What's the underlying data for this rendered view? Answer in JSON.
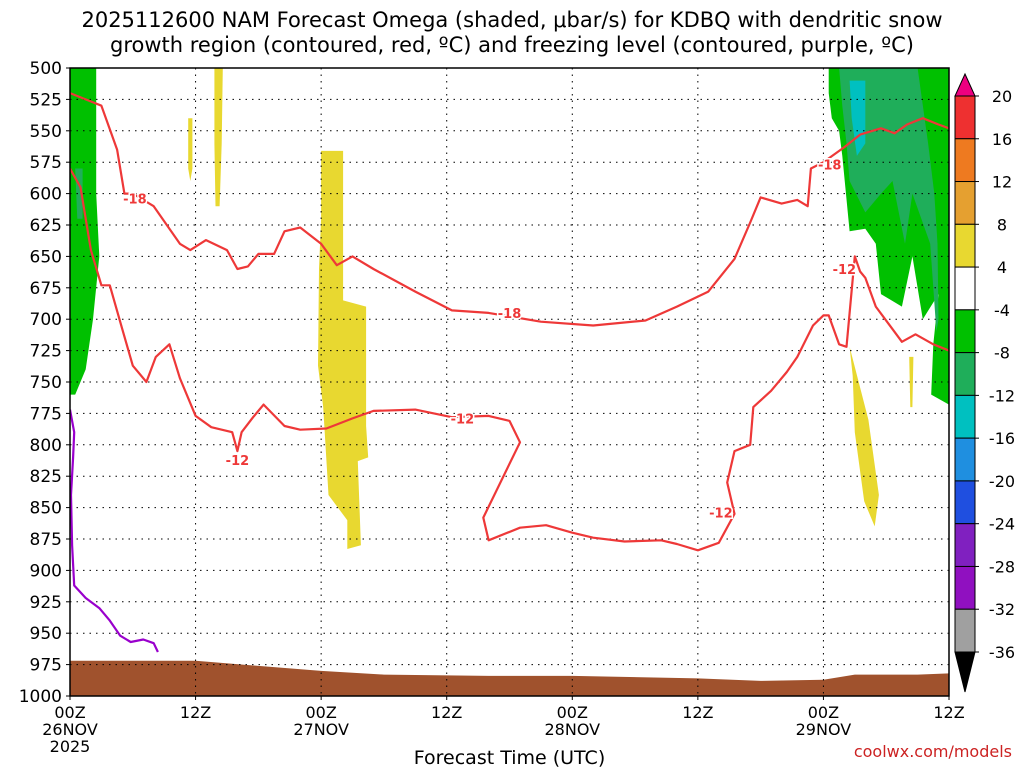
{
  "chart_data": {
    "type": "time-height contour",
    "title_line1": "2025112600 NAM Forecast Omega (shaded, μbar/s) for KDBQ with dendritic snow",
    "title_line2": "growth region (contoured, red, ºC) and freezing level (contoured, purple, ºC)",
    "xlabel": "Forecast Time (UTC)",
    "ylabel": "",
    "x_range_hours": [
      0,
      84
    ],
    "y_range_hpa": [
      1000,
      500
    ],
    "y_ticks": [
      "500",
      "525",
      "550",
      "575",
      "600",
      "625",
      "650",
      "675",
      "700",
      "725",
      "750",
      "775",
      "800",
      "825",
      "850",
      "875",
      "900",
      "925",
      "950",
      "975",
      "1000"
    ],
    "x_ticks": [
      {
        "hour": 0,
        "line1": "00Z",
        "line2": "26NOV",
        "line3": "2025"
      },
      {
        "hour": 12,
        "line1": "12Z",
        "line2": "",
        "line3": ""
      },
      {
        "hour": 24,
        "line1": "00Z",
        "line2": "27NOV",
        "line3": ""
      },
      {
        "hour": 36,
        "line1": "12Z",
        "line2": "",
        "line3": ""
      },
      {
        "hour": 48,
        "line1": "00Z",
        "line2": "28NOV",
        "line3": ""
      },
      {
        "hour": 60,
        "line1": "12Z",
        "line2": "",
        "line3": ""
      },
      {
        "hour": 72,
        "line1": "00Z",
        "line2": "29NOV",
        "line3": ""
      },
      {
        "hour": 84,
        "line1": "12Z",
        "line2": "",
        "line3": ""
      }
    ],
    "colorbar": {
      "labels": [
        "20",
        "16",
        "12",
        "8",
        "4",
        "-4",
        "-8",
        "-12",
        "-16",
        "-20",
        "-24",
        "-28",
        "-32",
        "-36"
      ],
      "colors": [
        "#ee0080",
        "#ee3030",
        "#ee7a20",
        "#e5a030",
        "#e8d830",
        "#ffffff",
        "#00c000",
        "#1fae5a",
        "#00c0c0",
        "#1f8fe0",
        "#1f4fe0",
        "#8020c0",
        "#9010c0",
        "#a0a0a0",
        "#000000"
      ]
    },
    "shading": [
      {
        "name": "green-left",
        "class": "-8 to -4",
        "points": [
          [
            0,
            500
          ],
          [
            2.5,
            500
          ],
          [
            2.5,
            600
          ],
          [
            2.8,
            650
          ],
          [
            2.2,
            700
          ],
          [
            1.5,
            740
          ],
          [
            0.5,
            760
          ],
          [
            0,
            760
          ]
        ]
      },
      {
        "name": "cyan-left",
        "class": "-12 to -8",
        "points": [
          [
            0.5,
            580
          ],
          [
            1.2,
            580
          ],
          [
            1.2,
            620
          ],
          [
            0.7,
            620
          ]
        ]
      },
      {
        "name": "yellow-thin-1",
        "class": "4 to 8",
        "points": [
          [
            13.8,
            500
          ],
          [
            14.6,
            500
          ],
          [
            14.5,
            560
          ],
          [
            14.3,
            610
          ],
          [
            13.9,
            610
          ],
          [
            13.8,
            560
          ]
        ]
      },
      {
        "name": "yellow-thin-2",
        "class": "4 to 8",
        "points": [
          [
            11.3,
            540
          ],
          [
            11.7,
            540
          ],
          [
            11.7,
            580
          ],
          [
            11.5,
            590
          ],
          [
            11.3,
            580
          ]
        ]
      },
      {
        "name": "yellow-col-a",
        "class": "4 to 8",
        "points": [
          [
            24,
            566
          ],
          [
            26.1,
            566
          ],
          [
            26.1,
            685
          ],
          [
            28.3,
            690
          ],
          [
            28.3,
            785
          ],
          [
            28.5,
            810
          ],
          [
            27.5,
            813
          ],
          [
            27.8,
            880
          ],
          [
            26.5,
            883
          ],
          [
            26.5,
            860
          ],
          [
            24.7,
            840
          ],
          [
            24.2,
            770
          ],
          [
            23.7,
            737
          ],
          [
            23.8,
            660
          ],
          [
            24,
            620
          ]
        ]
      },
      {
        "name": "yellow-right",
        "class": "4 to 8",
        "points": [
          [
            74.5,
            722
          ],
          [
            76.3,
            780
          ],
          [
            77.3,
            840
          ],
          [
            76.9,
            865
          ],
          [
            75.9,
            845
          ],
          [
            75,
            790
          ],
          [
            74.8,
            745
          ]
        ]
      },
      {
        "name": "yellow-sliver",
        "class": "4 to 8",
        "points": [
          [
            80.2,
            730
          ],
          [
            80.6,
            730
          ],
          [
            80.5,
            770
          ],
          [
            80.3,
            770
          ]
        ]
      },
      {
        "name": "green-right",
        "class": "-8 to -4",
        "points": [
          [
            72.5,
            500
          ],
          [
            84,
            500
          ],
          [
            84,
            768
          ],
          [
            82.3,
            760
          ],
          [
            82.5,
            720
          ],
          [
            83,
            680
          ],
          [
            81.5,
            700
          ],
          [
            80.5,
            650
          ],
          [
            79.5,
            690
          ],
          [
            77.5,
            680
          ],
          [
            77,
            640
          ],
          [
            76,
            628
          ],
          [
            74.5,
            630
          ],
          [
            73.8,
            570
          ],
          [
            73.5,
            550
          ],
          [
            72.8,
            540
          ],
          [
            72.5,
            520
          ]
        ]
      },
      {
        "name": "teal-right",
        "class": "-12 to -8",
        "points": [
          [
            73.5,
            500
          ],
          [
            81,
            500
          ],
          [
            82,
            560
          ],
          [
            82.6,
            600
          ],
          [
            82.9,
            640
          ],
          [
            83,
            700
          ],
          [
            82.8,
            710
          ],
          [
            82.2,
            640
          ],
          [
            80.5,
            600
          ],
          [
            79.8,
            640
          ],
          [
            78.6,
            590
          ],
          [
            77.5,
            600
          ],
          [
            76,
            615
          ],
          [
            74.5,
            590
          ],
          [
            74.2,
            560
          ],
          [
            73.8,
            530
          ]
        ]
      },
      {
        "name": "cyan-right",
        "class": "-16 to -12",
        "points": [
          [
            74.5,
            510
          ],
          [
            76,
            510
          ],
          [
            76,
            560
          ],
          [
            75.2,
            570
          ],
          [
            74.7,
            540
          ]
        ]
      }
    ],
    "contours": [
      {
        "name": "dgz-left-m18",
        "color": "#ee3838",
        "label": "-18",
        "label_at": [
          6.2,
          604
        ],
        "points": [
          [
            0,
            520
          ],
          [
            1.5,
            525
          ],
          [
            3,
            530
          ],
          [
            4.5,
            565
          ],
          [
            5.2,
            600
          ],
          [
            6,
            600
          ],
          [
            8,
            610
          ],
          [
            10.5,
            640
          ],
          [
            11.5,
            645
          ],
          [
            13,
            637
          ],
          [
            15,
            645
          ],
          [
            16,
            660
          ],
          [
            17,
            658
          ],
          [
            18,
            648
          ],
          [
            19.5,
            648
          ],
          [
            20.5,
            630
          ],
          [
            22,
            627
          ],
          [
            24,
            640
          ],
          [
            25.5,
            657
          ],
          [
            27,
            650
          ],
          [
            29,
            660
          ],
          [
            33,
            678
          ],
          [
            36.5,
            693
          ],
          [
            40,
            695
          ],
          [
            45,
            702
          ],
          [
            50,
            705
          ],
          [
            55,
            701
          ],
          [
            58,
            690
          ],
          [
            61,
            678
          ],
          [
            63.5,
            652
          ],
          [
            65,
            623
          ],
          [
            66,
            603
          ],
          [
            68,
            608
          ],
          [
            69.5,
            605
          ],
          [
            70.5,
            610
          ],
          [
            70.8,
            580
          ],
          [
            72,
            575
          ],
          [
            72.5,
            572
          ],
          [
            74,
            563
          ],
          [
            75.5,
            553
          ],
          [
            77.5,
            548
          ],
          [
            78.8,
            552
          ],
          [
            80,
            545
          ],
          [
            81.5,
            540
          ],
          [
            83,
            545
          ],
          [
            84,
            548
          ]
        ]
      },
      {
        "name": "dgz-left-m12",
        "color": "#ee3838",
        "label": "-12",
        "label_at": [
          16,
          812
        ],
        "points": [
          [
            0,
            580
          ],
          [
            1,
            595
          ],
          [
            2,
            645
          ],
          [
            3,
            673
          ],
          [
            3.8,
            673
          ],
          [
            5,
            708
          ],
          [
            6,
            737
          ],
          [
            7.3,
            750
          ],
          [
            8.2,
            730
          ],
          [
            9.5,
            720
          ],
          [
            10.5,
            747
          ],
          [
            12,
            777
          ],
          [
            13.5,
            786
          ],
          [
            15.5,
            790
          ],
          [
            16,
            805
          ],
          [
            16.4,
            790
          ],
          [
            17.5,
            778
          ],
          [
            18.5,
            768
          ],
          [
            20.5,
            785
          ],
          [
            22,
            788
          ],
          [
            24.5,
            787
          ],
          [
            27,
            779
          ],
          [
            29,
            773
          ],
          [
            33,
            772
          ],
          [
            36.5,
            778
          ],
          [
            40,
            777
          ],
          [
            42,
            781
          ],
          [
            43,
            798
          ],
          [
            39.5,
            858
          ],
          [
            40,
            876
          ],
          [
            43,
            866
          ],
          [
            45.5,
            864
          ],
          [
            48,
            870
          ],
          [
            50,
            874
          ],
          [
            53,
            877
          ],
          [
            56.5,
            876
          ],
          [
            58,
            879
          ],
          [
            60,
            884
          ],
          [
            62,
            878
          ],
          [
            63.5,
            855
          ],
          [
            62.8,
            830
          ],
          [
            63.5,
            805
          ],
          [
            65,
            800
          ],
          [
            65.3,
            770
          ],
          [
            67,
            757
          ],
          [
            68.5,
            742
          ],
          [
            69.5,
            730
          ],
          [
            71,
            705
          ],
          [
            72,
            697
          ],
          [
            72.5,
            697
          ],
          [
            73.5,
            720
          ],
          [
            74.2,
            722
          ],
          [
            75,
            650
          ],
          [
            75.5,
            662
          ],
          [
            76,
            667
          ],
          [
            77,
            690
          ],
          [
            79.5,
            718
          ],
          [
            80.8,
            712
          ],
          [
            82.5,
            720
          ],
          [
            84,
            725
          ]
        ]
      },
      {
        "name": "dgz-mid-m12-label",
        "color": "#ee3838",
        "label": "-12",
        "label_at": [
          37.5,
          779
        ],
        "points": []
      },
      {
        "name": "dgz-mid-m18-label",
        "color": "#ee3838",
        "label": "-18",
        "label_at": [
          42,
          695
        ],
        "points": []
      },
      {
        "name": "dgz-right-m12-label",
        "color": "#ee3838",
        "label": "-12",
        "label_at": [
          62.2,
          854
        ],
        "points": []
      },
      {
        "name": "dgz-right-m18-label",
        "color": "#ee3838",
        "label": "-18",
        "label_at": [
          72.6,
          577
        ],
        "points": []
      },
      {
        "name": "dgz-right2-m12-label",
        "color": "#ee3838",
        "label": "-12",
        "label_at": [
          74,
          660
        ],
        "points": []
      },
      {
        "name": "freezing-level",
        "color": "#9900cc",
        "label": "",
        "label_at": null,
        "points": [
          [
            0,
            772
          ],
          [
            0.4,
            790
          ],
          [
            0.3,
            810
          ],
          [
            0.1,
            840
          ],
          [
            0.2,
            880
          ],
          [
            0.4,
            912
          ],
          [
            1.5,
            922
          ],
          [
            2.8,
            930
          ],
          [
            3.8,
            940
          ],
          [
            4.8,
            952
          ],
          [
            5.8,
            957
          ],
          [
            7,
            955
          ],
          [
            8,
            958
          ],
          [
            8.4,
            965
          ]
        ]
      }
    ],
    "terrain": {
      "color": "#a0522d",
      "top_hpa": [
        [
          0,
          972
        ],
        [
          5,
          972
        ],
        [
          12,
          972
        ],
        [
          18,
          976
        ],
        [
          24,
          980
        ],
        [
          30,
          983
        ],
        [
          40,
          984
        ],
        [
          48,
          984
        ],
        [
          60,
          986
        ],
        [
          66,
          988
        ],
        [
          72,
          987
        ],
        [
          75,
          983
        ],
        [
          78,
          983
        ],
        [
          81,
          983
        ],
        [
          84,
          982
        ]
      ]
    }
  },
  "labels": {
    "xlabel": "Forecast Time (UTC)",
    "credit": "coolwx.com/models"
  }
}
